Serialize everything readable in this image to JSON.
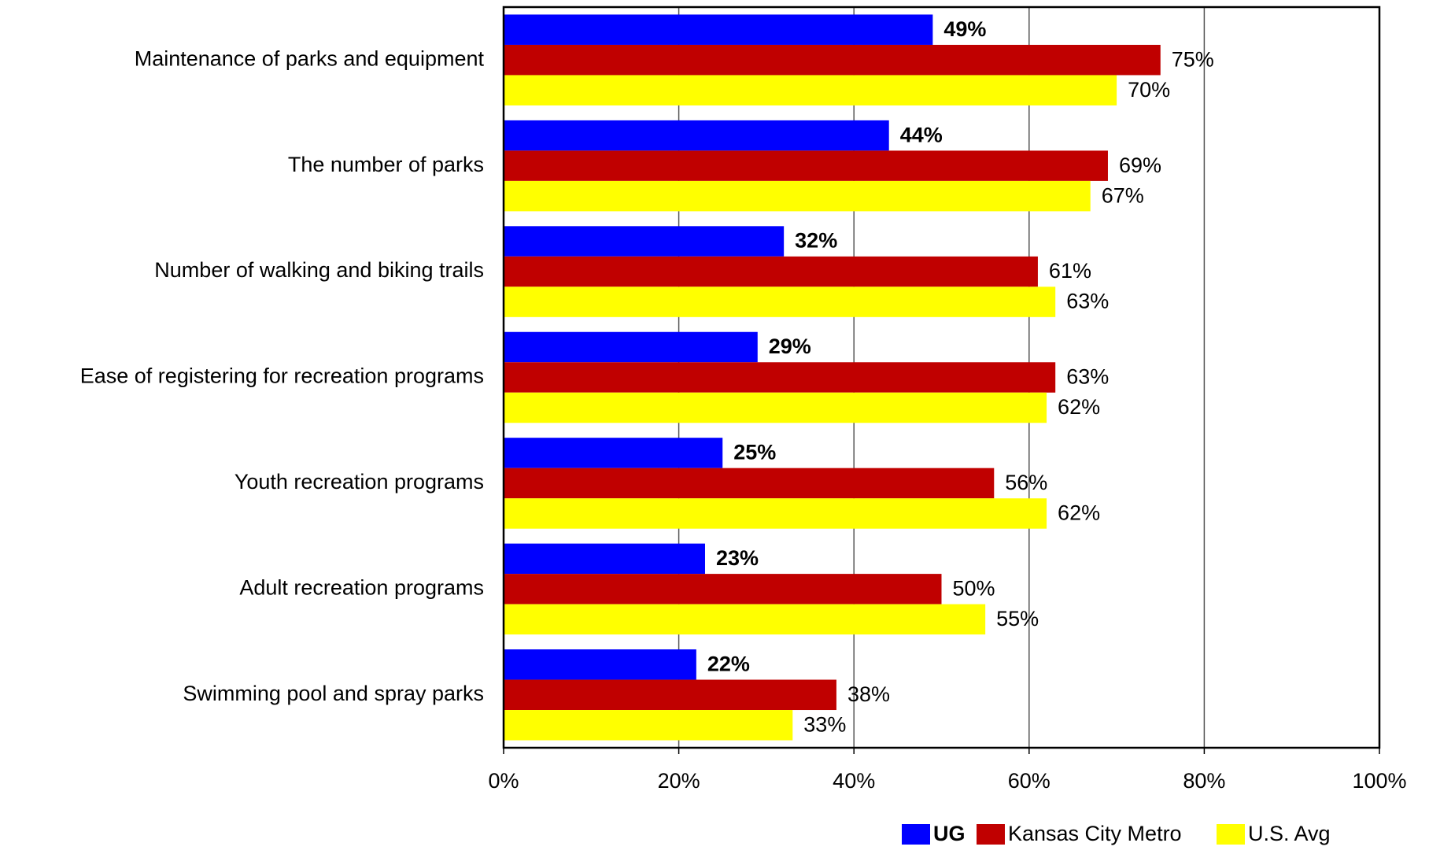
{
  "chart_data": {
    "type": "bar",
    "orientation": "horizontal",
    "categories": [
      "Maintenance of parks and equipment",
      "The number of parks",
      "Number of walking and biking trails",
      "Ease of registering for recreation programs",
      "Youth recreation programs",
      "Adult recreation programs",
      "Swimming pool and spray parks"
    ],
    "series": [
      {
        "name": "UG",
        "color": "#0000ff",
        "values": [
          49,
          44,
          32,
          29,
          25,
          23,
          22
        ],
        "value_labels": [
          "49%",
          "44%",
          "32%",
          "29%",
          "25%",
          "23%",
          "22%"
        ]
      },
      {
        "name": "Kansas City Metro",
        "color": "#c00000",
        "values": [
          75,
          69,
          61,
          63,
          56,
          50,
          38
        ],
        "value_labels": [
          "75%",
          "69%",
          "61%",
          "63%",
          "56%",
          "50%",
          "38%"
        ]
      },
      {
        "name": "U.S. Avg",
        "color": "#ffff00",
        "values": [
          70,
          67,
          63,
          62,
          62,
          55,
          33
        ],
        "value_labels": [
          "70%",
          "67%",
          "63%",
          "62%",
          "62%",
          "55%",
          "33%"
        ]
      }
    ],
    "xlim": [
      0,
      100
    ],
    "xticks": [
      {
        "value": 0,
        "label": "0%"
      },
      {
        "value": 20,
        "label": "20%"
      },
      {
        "value": 40,
        "label": "40%"
      },
      {
        "value": 60,
        "label": "60%"
      },
      {
        "value": 80,
        "label": "80%"
      },
      {
        "value": 100,
        "label": "100%"
      }
    ],
    "grid": true,
    "legend": "bottom-right"
  }
}
